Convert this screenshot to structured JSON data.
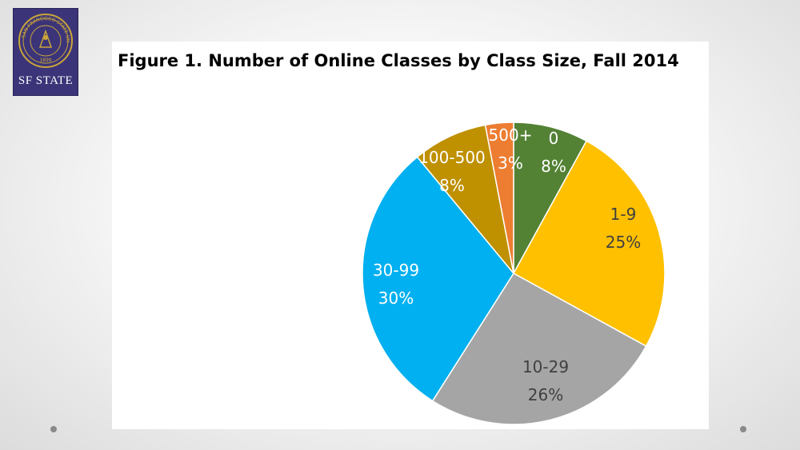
{
  "logo": {
    "text": "SF STATE",
    "seal_text": "SAN FRANCISCO STATE UNIVERSITY",
    "seal_year": "1899"
  },
  "colors": {
    "logo_bg": "#3b3478",
    "seal_gold": "#c9a53a"
  },
  "chart_data": {
    "type": "pie",
    "title": "Figure 1. Number of Online Classes by Class Size, Fall 2014",
    "unit": "%",
    "slices": [
      {
        "label": "0",
        "value": 8,
        "display": "8%",
        "color": "#548235",
        "text_color": "#ffffff"
      },
      {
        "label": "1-9",
        "value": 25,
        "display": "25%",
        "color": "#ffc000",
        "text_color": "#404040"
      },
      {
        "label": "10-29",
        "value": 26,
        "display": "26%",
        "color": "#a5a5a5",
        "text_color": "#404040"
      },
      {
        "label": "30-99",
        "value": 30,
        "display": "30%",
        "color": "#00b0f0",
        "text_color": "#ffffff"
      },
      {
        "label": "100-500",
        "value": 8,
        "display": "8%",
        "color": "#bf9000",
        "text_color": "#ffffff"
      },
      {
        "label": "500+",
        "value": 3,
        "display": "3%",
        "color": "#ed7d31",
        "text_color": "#ffffff"
      }
    ]
  }
}
